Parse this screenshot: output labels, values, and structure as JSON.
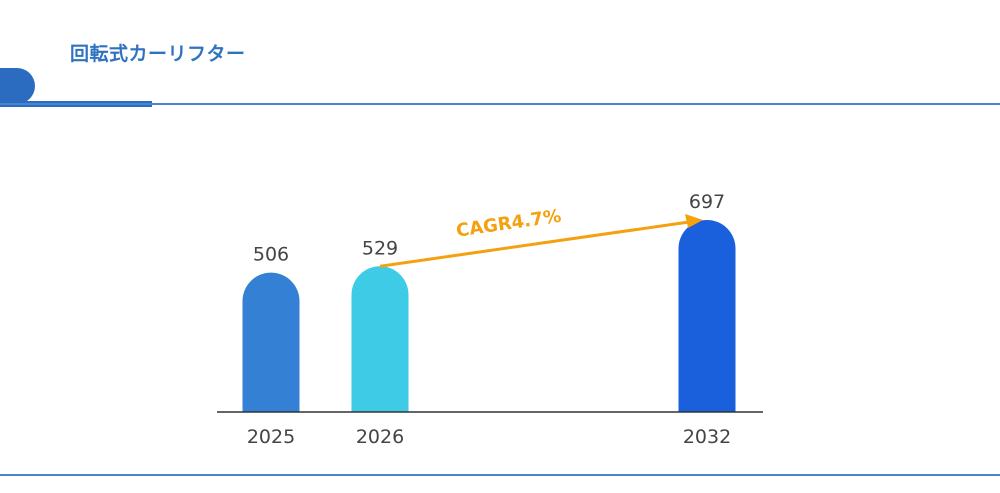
{
  "header": {
    "title": "回転式カーリフター"
  },
  "chart_data": {
    "type": "bar",
    "categories": [
      "2025",
      "2026",
      "2032"
    ],
    "values": [
      506,
      529,
      697
    ],
    "colors": [
      "#3480d4",
      "#3ecbe6",
      "#1a5fdc"
    ],
    "annotation": {
      "text": "CAGR4.7%",
      "from": "2026",
      "to": "2032",
      "color": "#f5a00f"
    },
    "ylim": [
      0,
      760
    ],
    "grid": false
  }
}
